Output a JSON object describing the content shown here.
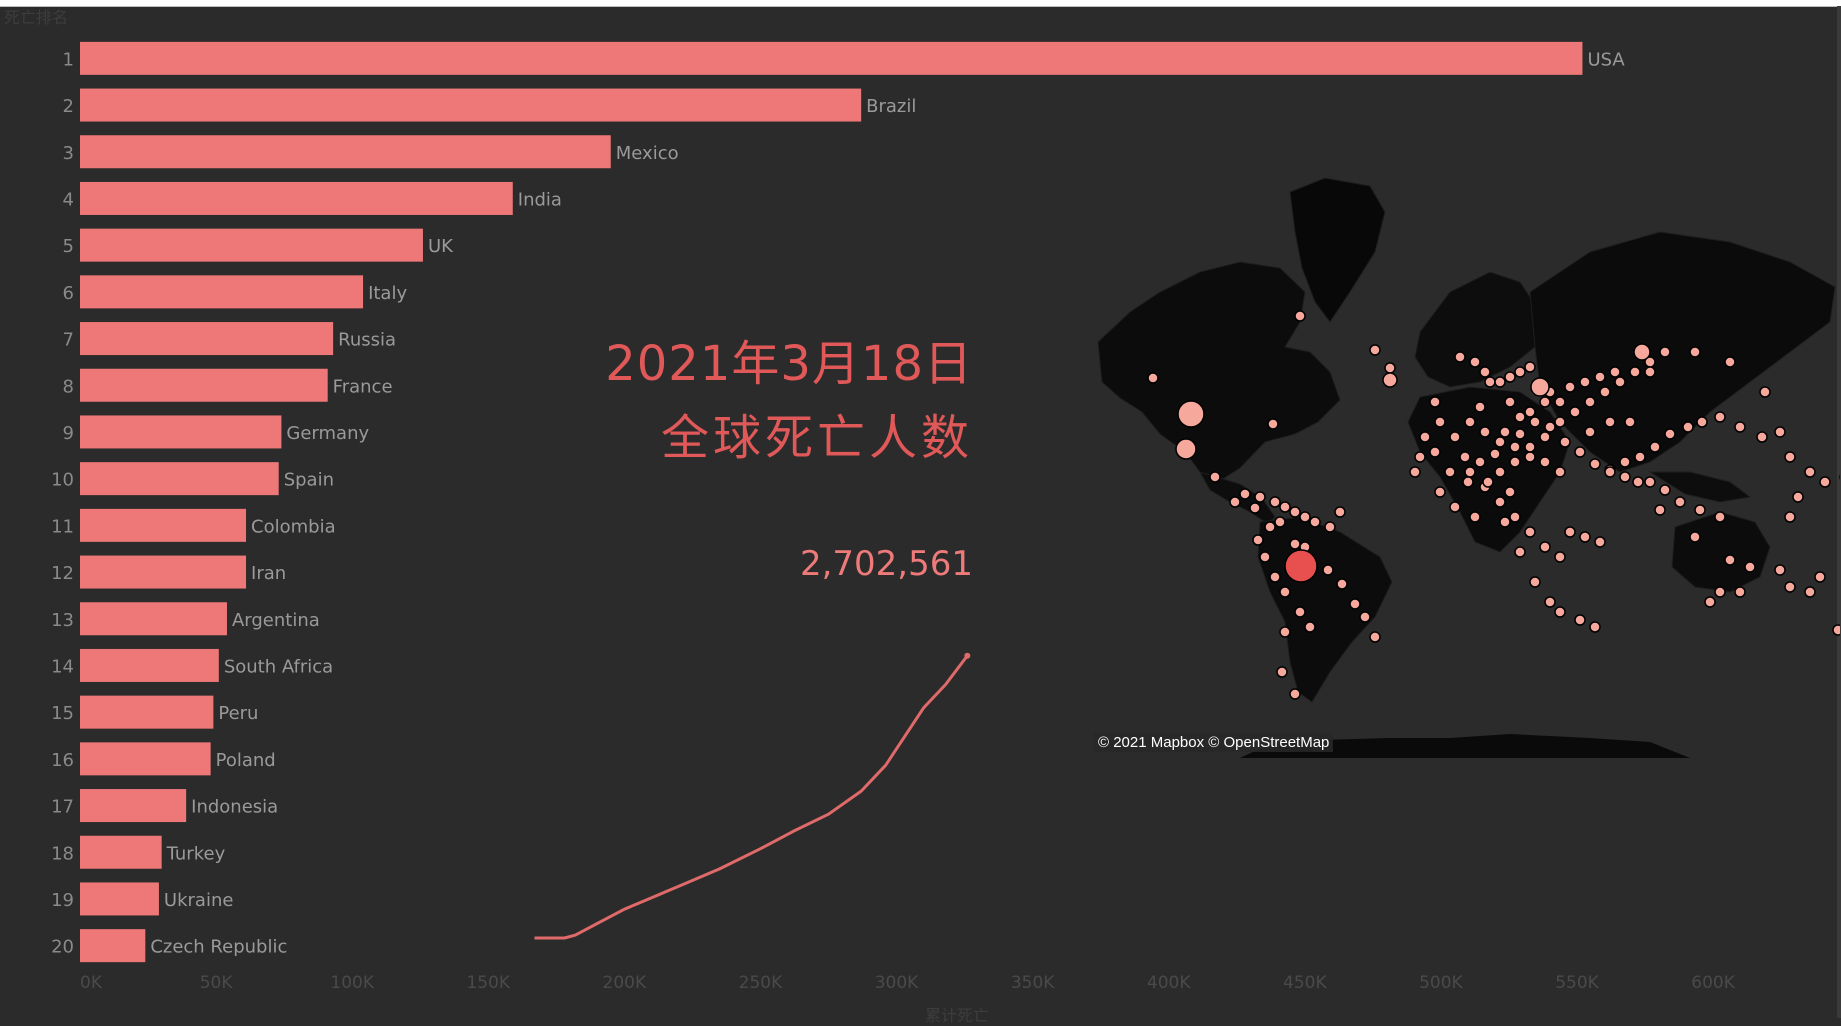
{
  "header": {
    "rank_axis_title": "死亡排名",
    "date_text": "2021年3月18日",
    "metric_text": "全球死亡人数",
    "total_text": "2,702,561",
    "x_axis_title": "累计死亡"
  },
  "map": {
    "attribution": "© 2021 Mapbox © OpenStreetMap",
    "bubble_color_small": "#f7a89c",
    "bubble_color_large": "#e84f4f"
  },
  "colors": {
    "background": "#2b2b2b",
    "bar": "#ee7877",
    "label_text": "#9a9a9a",
    "headline": "#e05858",
    "line": "#e06a6a"
  },
  "chart_data": [
    {
      "type": "bar",
      "orientation": "horizontal",
      "title": "",
      "ylabel": "死亡排名",
      "xlabel": "累计死亡",
      "xlim": [
        0,
        640000
      ],
      "x_ticks": [
        0,
        50000,
        100000,
        150000,
        200000,
        250000,
        300000,
        350000,
        400000,
        450000,
        500000,
        550000,
        600000
      ],
      "x_tick_labels": [
        "0K",
        "50K",
        "100K",
        "150K",
        "200K",
        "250K",
        "300K",
        "350K",
        "400K",
        "450K",
        "500K",
        "550K",
        "600K"
      ],
      "ranks": [
        1,
        2,
        3,
        4,
        5,
        6,
        7,
        8,
        9,
        10,
        11,
        12,
        13,
        14,
        15,
        16,
        17,
        18,
        19,
        20
      ],
      "categories": [
        "USA",
        "Brazil",
        "Mexico",
        "India",
        "UK",
        "Italy",
        "Russia",
        "France",
        "Germany",
        "Spain",
        "Colombia",
        "Iran",
        "Argentina",
        "South Africa",
        "Peru",
        "Poland",
        "Indonesia",
        "Turkey",
        "Ukraine",
        "Czech Republic"
      ],
      "values": [
        552000,
        287000,
        195000,
        159000,
        126000,
        104000,
        93000,
        91000,
        74000,
        73000,
        61000,
        61000,
        54000,
        51000,
        49000,
        48000,
        39000,
        30000,
        29000,
        24000
      ],
      "grid": false,
      "legend": "none"
    },
    {
      "type": "line",
      "title": "",
      "description_axis": "cumulative global deaths (same x scale as bar chart)",
      "x_values_deaths": [
        167000,
        178000,
        182000,
        190000,
        200000,
        210000,
        220000,
        235000,
        250000,
        262000,
        275000,
        287000,
        296000,
        303000,
        310000,
        318000,
        326000
      ],
      "y_progress": [
        0.0,
        0.0,
        0.01,
        0.05,
        0.1,
        0.14,
        0.18,
        0.24,
        0.31,
        0.37,
        0.43,
        0.51,
        0.6,
        0.7,
        0.8,
        0.88,
        0.98
      ]
    }
  ]
}
